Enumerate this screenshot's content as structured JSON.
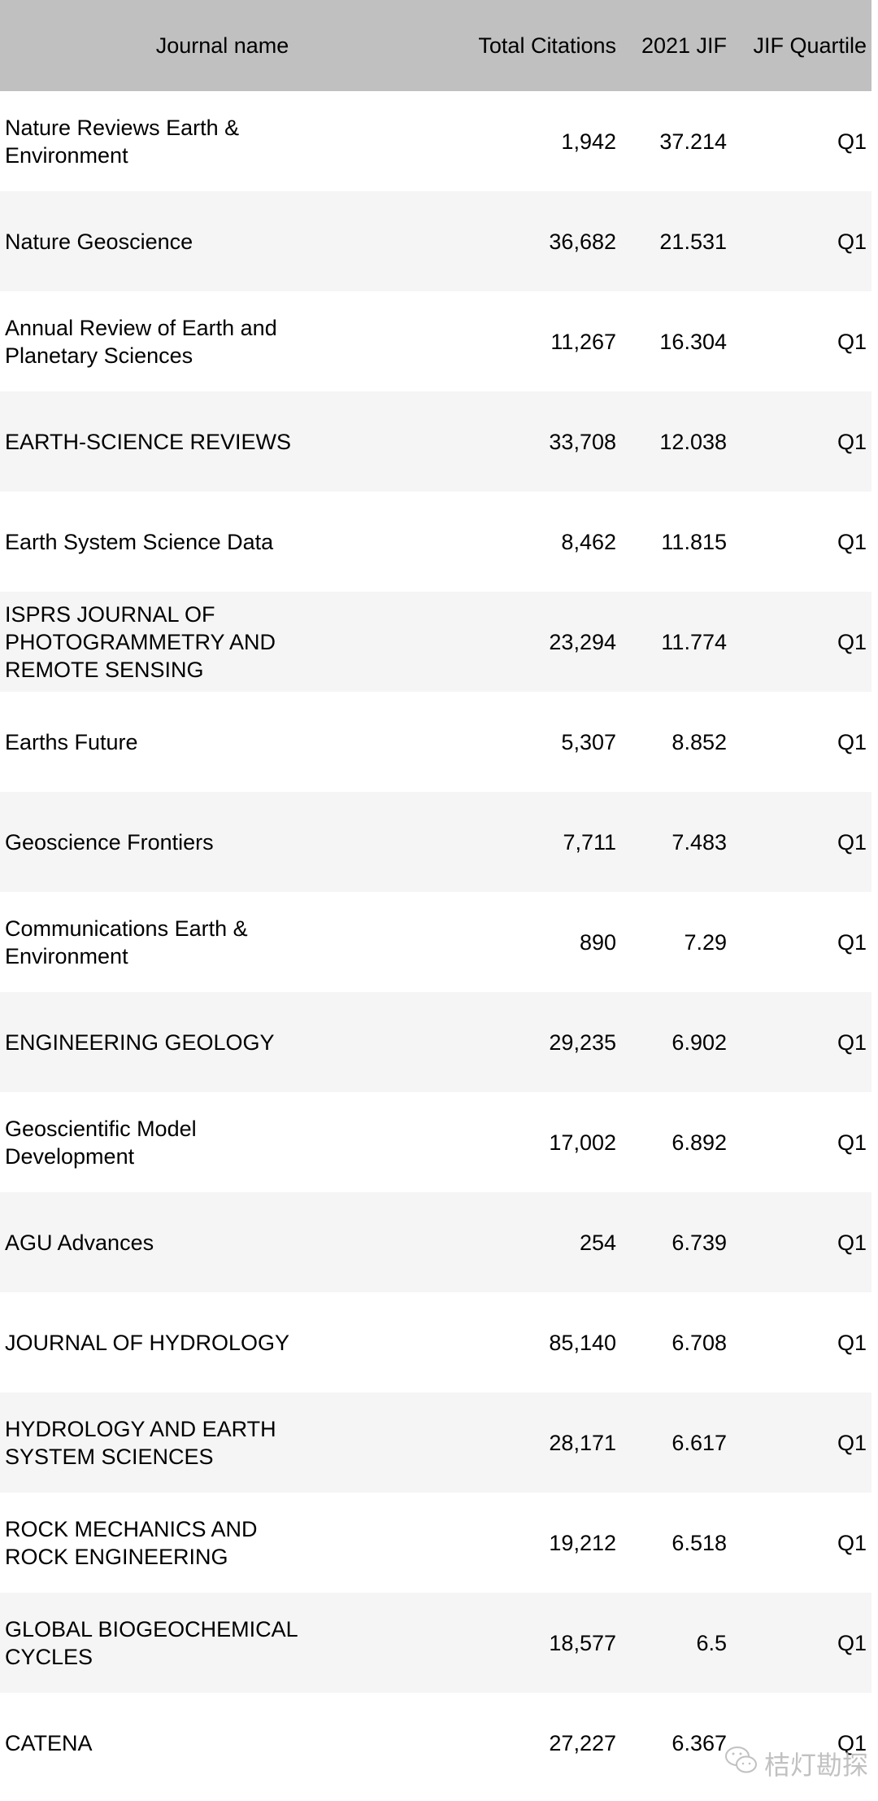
{
  "table": {
    "headers": [
      "Journal name",
      "Total Citations",
      "2021 JIF",
      "JIF Quartile"
    ],
    "rows": [
      [
        "Nature Reviews Earth & Environment",
        "1,942",
        "37.214",
        "Q1"
      ],
      [
        "Nature Geoscience",
        "36,682",
        "21.531",
        "Q1"
      ],
      [
        "Annual Review of Earth and Planetary Sciences",
        "11,267",
        "16.304",
        "Q1"
      ],
      [
        "EARTH-SCIENCE REVIEWS",
        "33,708",
        "12.038",
        "Q1"
      ],
      [
        "Earth System Science Data",
        "8,462",
        "11.815",
        "Q1"
      ],
      [
        "ISPRS JOURNAL OF PHOTOGRAMMETRY AND REMOTE SENSING",
        "23,294",
        "11.774",
        "Q1"
      ],
      [
        "Earths Future",
        "5,307",
        "8.852",
        "Q1"
      ],
      [
        "Geoscience Frontiers",
        "7,711",
        "7.483",
        "Q1"
      ],
      [
        "Communications Earth & Environment",
        "890",
        "7.29",
        "Q1"
      ],
      [
        "ENGINEERING GEOLOGY",
        "29,235",
        "6.902",
        "Q1"
      ],
      [
        "Geoscientific Model Development",
        "17,002",
        "6.892",
        "Q1"
      ],
      [
        "AGU Advances",
        "254",
        "6.739",
        "Q1"
      ],
      [
        "JOURNAL OF HYDROLOGY",
        "85,140",
        "6.708",
        "Q1"
      ],
      [
        "HYDROLOGY AND EARTH SYSTEM SCIENCES",
        "28,171",
        "6.617",
        "Q1"
      ],
      [
        "ROCK MECHANICS AND ROCK ENGINEERING",
        "19,212",
        "6.518",
        "Q1"
      ],
      [
        "GLOBAL BIOGEOCHEMICAL CYCLES",
        "18,577",
        "6.5",
        "Q1"
      ],
      [
        "CATENA",
        "27,227",
        "6.367",
        "Q1"
      ]
    ]
  },
  "watermark": {
    "text": "桔灯勘探",
    "icon": "wechat-icon"
  }
}
